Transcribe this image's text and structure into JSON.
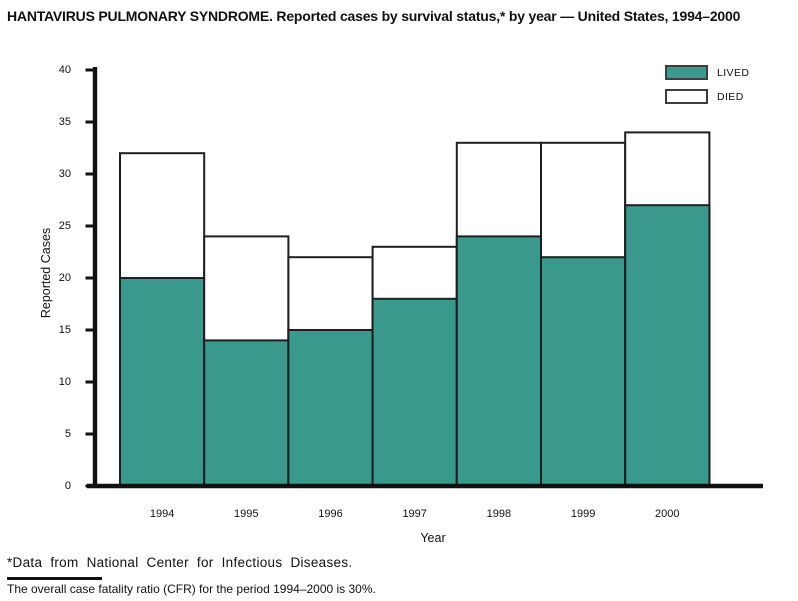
{
  "title": "HANTAVIRUS PULMONARY SYNDROME. Reported cases by survival status,* by year — United States, 1994–2000",
  "colors": {
    "lived_fill": "#3A998D",
    "died_fill": "#FFFFFF",
    "bar_border": "#1F1F1F",
    "axis": "#111111"
  },
  "legend": {
    "items": [
      {
        "label": "LIVED",
        "color": "#3A998D"
      },
      {
        "label": "DIED",
        "color": "#FFFFFF"
      }
    ]
  },
  "chart_data": {
    "type": "bar",
    "stacked": true,
    "title": "HANTAVIRUS PULMONARY SYNDROME. Reported cases by survival status,* by year — United States, 1994–2000",
    "categories": [
      "1994",
      "1995",
      "1996",
      "1997",
      "1998",
      "1999",
      "2000"
    ],
    "series": [
      {
        "name": "LIVED",
        "values": [
          20,
          14,
          15,
          18,
          24,
          22,
          27
        ],
        "color": "#3A998D"
      },
      {
        "name": "DIED",
        "values": [
          12,
          10,
          7,
          5,
          9,
          11,
          7
        ],
        "color": "#FFFFFF"
      }
    ],
    "totals": [
      32,
      24,
      22,
      23,
      33,
      33,
      34
    ],
    "xlabel": "Year",
    "ylabel": "Reported Cases",
    "ylim": [
      0,
      40
    ],
    "ytick_step": 5,
    "yticks": [
      "0",
      "5",
      "10",
      "15",
      "20",
      "25",
      "30",
      "35",
      "40"
    ],
    "grid": false,
    "legend_position": "top-right"
  },
  "footnotes": {
    "line1": "*Data from National Center for Infectious Diseases.",
    "line2": "The overall case fatality ratio (CFR) for the period 1994–2000 is 30%."
  }
}
